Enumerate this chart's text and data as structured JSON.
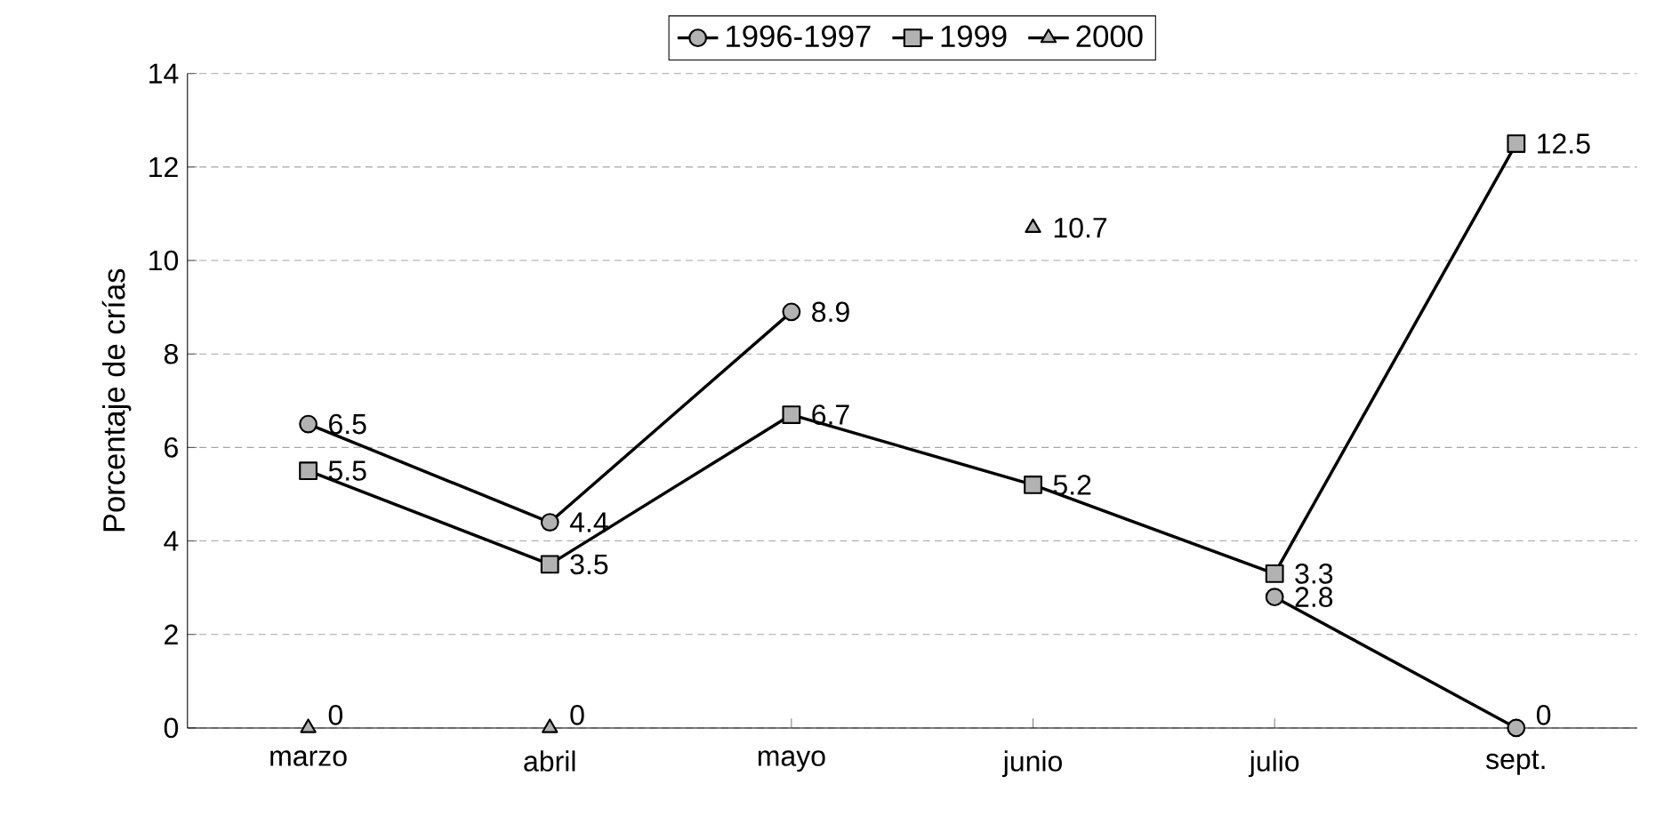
{
  "chart_data": {
    "type": "line",
    "ylabel": "Porcentaje de crías",
    "categories": [
      "marzo",
      "abril",
      "mayo",
      "junio",
      "julio",
      "sept."
    ],
    "series": [
      {
        "name": "1996-1997",
        "color": "#000000",
        "marker": "circle",
        "values": [
          6.5,
          4.4,
          8.9,
          null,
          2.8,
          0
        ]
      },
      {
        "name": "1999",
        "color": "#000000",
        "marker": "square",
        "values": [
          5.5,
          3.5,
          6.7,
          5.2,
          3.3,
          12.5
        ]
      },
      {
        "name": "2000",
        "color": "#000000",
        "marker": "triangle",
        "type": "scatter",
        "values": [
          0,
          0,
          null,
          10.7,
          null,
          null
        ]
      }
    ],
    "ylim": [
      0,
      14
    ],
    "yticks": [
      0,
      2,
      4,
      6,
      8,
      10,
      12,
      14
    ],
    "grid": "y",
    "legend": "top",
    "data_labels": true,
    "line_style": "solid"
  }
}
